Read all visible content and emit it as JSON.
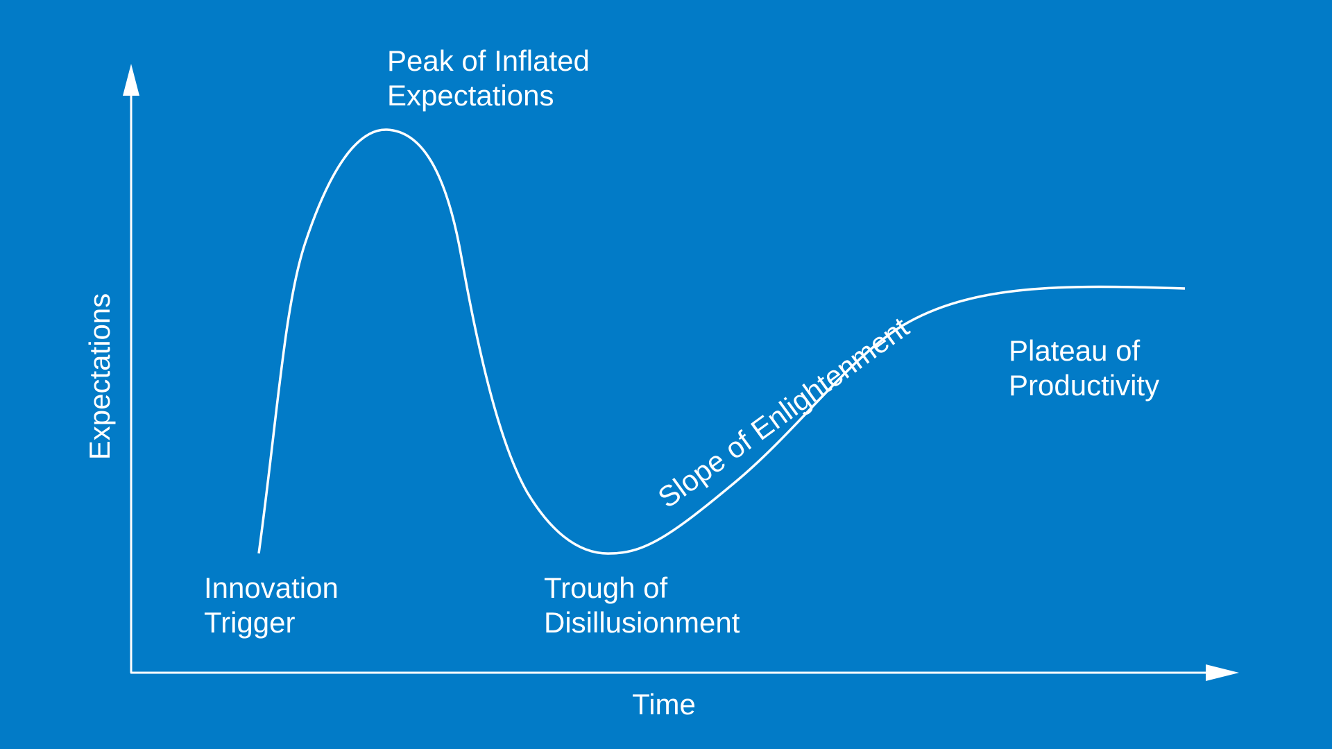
{
  "colors": {
    "background": "#027bc7",
    "foreground": "#ffffff"
  },
  "axes": {
    "y_label": "Expectations",
    "x_label": "Time"
  },
  "phases": {
    "innovation_trigger": {
      "line1": "Innovation",
      "line2": "Trigger"
    },
    "peak": {
      "line1": "Peak of Inflated",
      "line2": "Expectations"
    },
    "trough": {
      "line1": "Trough of",
      "line2": "Disillusionment"
    },
    "slope": {
      "label": "Slope of Enlightenment"
    },
    "plateau": {
      "line1": "Plateau of",
      "line2": "Productivity"
    }
  }
}
